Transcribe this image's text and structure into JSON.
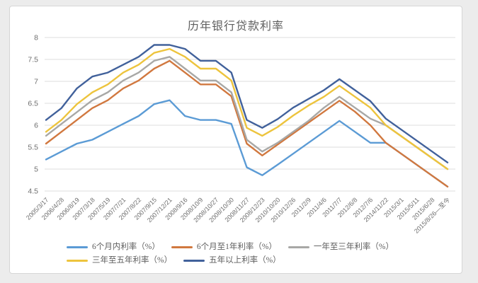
{
  "style": {
    "page_background": "#ececec",
    "card_background": "#ffffff",
    "card_border": "#d6d6d6",
    "grid_color": "#dcdcdc",
    "axis_text_color": "#6e6e6e",
    "title_color": "#5f5f5f"
  },
  "chart_data": {
    "type": "line",
    "title": "历年银行贷款利率",
    "xlabel": "",
    "ylabel": "",
    "ylim": [
      4.5,
      8
    ],
    "ytick_step": 0.5,
    "grid": true,
    "legend_position": "bottom",
    "categories": [
      "2005/3/17",
      "2006/4/28",
      "2006/8/19",
      "2007/3/18",
      "2007/5/19",
      "2007/7/21",
      "2007/8/22",
      "2007/9/15",
      "2007/12/21",
      "2008/9/16",
      "2008/10/9",
      "2008/10/27",
      "2008/10/30",
      "2008/11/27",
      "2008/12/23",
      "2010/10/20",
      "2010/12/26",
      "2011/2/9",
      "2011/4/6",
      "2011/7/7",
      "2012/6/8",
      "2012/7/6",
      "2014/11/22",
      "2015/3/1",
      "2015/5/11",
      "2015/6/28",
      "2015/8/26—至今"
    ],
    "series": [
      {
        "name": "6个月内利率（%）",
        "color": "#5B9BD5",
        "values": [
          5.22,
          5.4,
          5.58,
          5.67,
          5.85,
          6.03,
          6.21,
          6.48,
          6.57,
          6.21,
          6.12,
          6.12,
          6.03,
          5.04,
          4.86,
          5.1,
          5.35,
          5.6,
          5.85,
          6.1,
          5.85,
          5.6,
          5.6,
          5.35,
          5.1,
          4.85,
          4.6
        ]
      },
      {
        "name": "6个月至1年利率（%）",
        "color": "#D1783F",
        "values": [
          5.58,
          5.85,
          6.12,
          6.39,
          6.57,
          6.84,
          7.02,
          7.29,
          7.47,
          7.2,
          6.93,
          6.93,
          6.66,
          5.58,
          5.31,
          5.56,
          5.81,
          6.06,
          6.31,
          6.56,
          6.31,
          6.0,
          5.6,
          5.35,
          5.1,
          4.85,
          4.6
        ]
      },
      {
        "name": "一年至三年利率（%）",
        "color": "#A8A8A6",
        "values": [
          5.76,
          6.03,
          6.3,
          6.57,
          6.75,
          7.02,
          7.2,
          7.47,
          7.56,
          7.29,
          7.02,
          7.02,
          6.75,
          5.67,
          5.4,
          5.6,
          5.85,
          6.1,
          6.4,
          6.65,
          6.4,
          6.15,
          6.0,
          5.75,
          5.5,
          5.25,
          5.0
        ]
      },
      {
        "name": "三年至五年利率（%）",
        "color": "#EDC43D",
        "values": [
          5.85,
          6.12,
          6.48,
          6.75,
          6.93,
          7.2,
          7.38,
          7.65,
          7.74,
          7.56,
          7.29,
          7.29,
          7.02,
          5.94,
          5.76,
          5.96,
          6.22,
          6.45,
          6.65,
          6.9,
          6.65,
          6.4,
          6.0,
          5.75,
          5.5,
          5.25,
          5.0
        ]
      },
      {
        "name": "五年以上利率（%）",
        "color": "#41619B",
        "values": [
          6.12,
          6.39,
          6.84,
          7.11,
          7.2,
          7.38,
          7.56,
          7.83,
          7.83,
          7.74,
          7.47,
          7.47,
          7.2,
          6.12,
          5.94,
          6.14,
          6.4,
          6.6,
          6.8,
          7.05,
          6.8,
          6.55,
          6.15,
          5.9,
          5.65,
          5.4,
          5.15
        ]
      }
    ]
  }
}
